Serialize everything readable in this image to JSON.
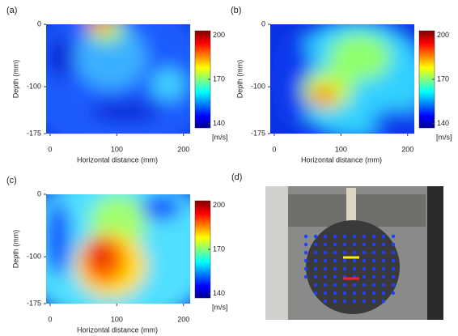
{
  "chart_data": [
    {
      "type": "heatmap",
      "panel_label": "(a)",
      "xlabel": "Horizontal distance (mm)",
      "ylabel": "Depth (mm)",
      "xlim": [
        -6,
        210
      ],
      "ylim": [
        -175,
        0
      ],
      "xticks": [
        0,
        100,
        200
      ],
      "yticks": [
        0,
        -100,
        -175
      ],
      "colorbar": {
        "lim": [
          137,
          203
        ],
        "ticks": [
          140,
          170,
          200
        ],
        "unit": "[m/s]"
      }
    },
    {
      "type": "heatmap",
      "panel_label": "(b)",
      "xlabel": "Horizontal distance (mm)",
      "ylabel": "Depth (mm)",
      "xlim": [
        -6,
        210
      ],
      "ylim": [
        -175,
        0
      ],
      "xticks": [
        0,
        100,
        200
      ],
      "yticks": [
        0,
        -100,
        -175
      ],
      "colorbar": {
        "lim": [
          137,
          203
        ],
        "ticks": [
          140,
          170,
          200
        ],
        "unit": "[m/s]"
      }
    },
    {
      "type": "heatmap",
      "panel_label": "(c)",
      "xlabel": "Horizontal distance (mm)",
      "ylabel": "Depth (mm)",
      "xlim": [
        -6,
        210
      ],
      "ylim": [
        -175,
        0
      ],
      "xticks": [
        0,
        100,
        200
      ],
      "yticks": [
        0,
        -100,
        -175
      ],
      "colorbar": {
        "lim": [
          137,
          203
        ],
        "ticks": [
          140,
          170,
          200
        ],
        "unit": "[m/s]"
      }
    }
  ],
  "photo": {
    "panel_label": "(d)"
  }
}
